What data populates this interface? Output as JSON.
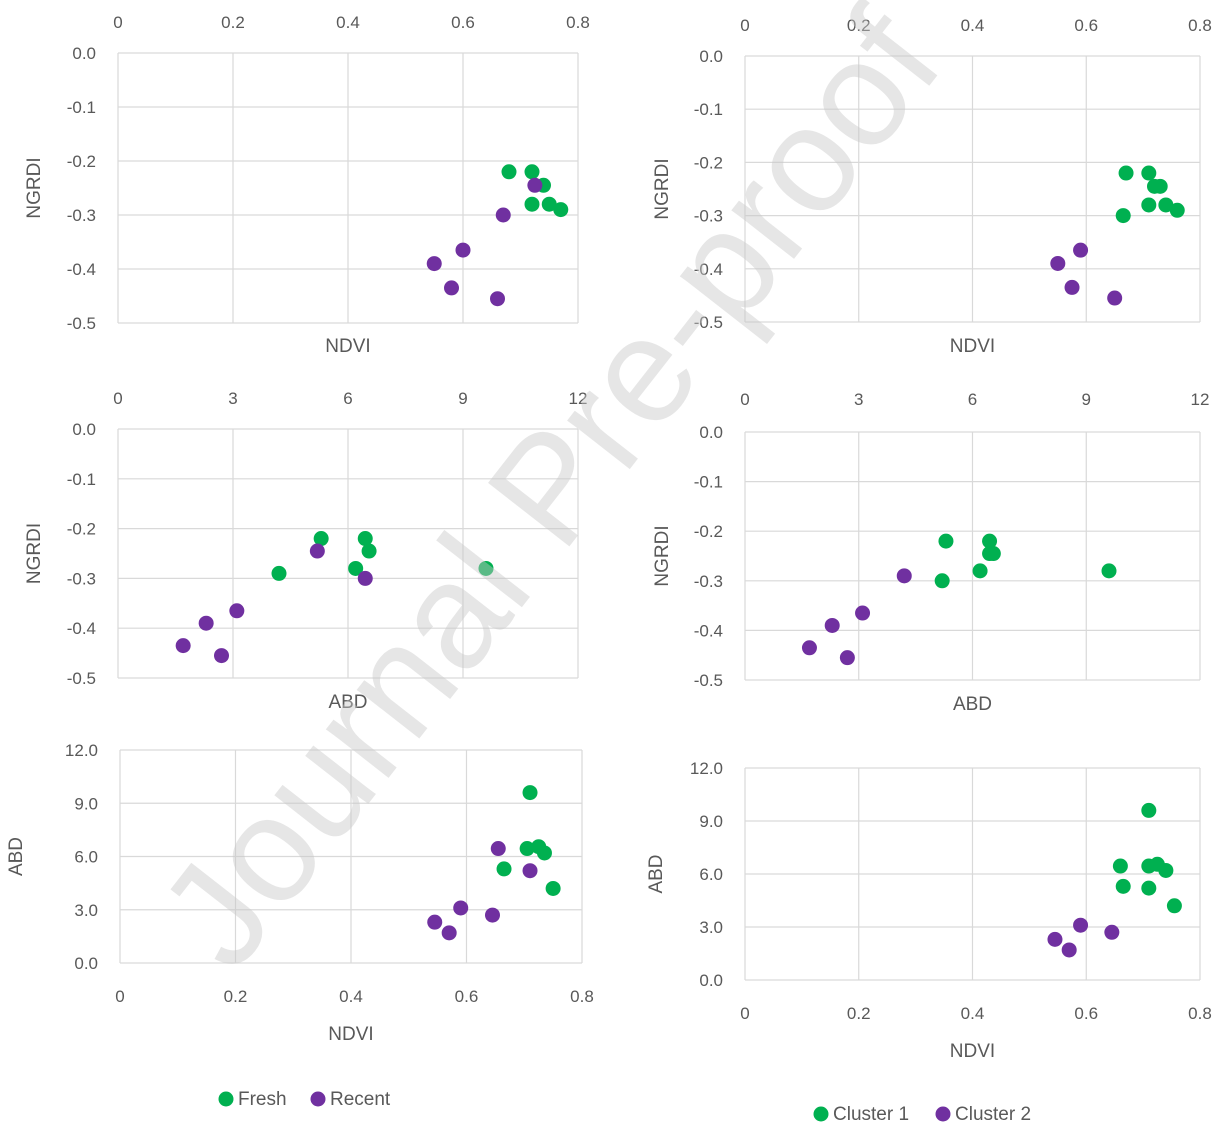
{
  "watermark": "Journal Pre-proof",
  "colors": {
    "green": "#00b050",
    "purple": "#7030a0",
    "grid": "#d9d9d9",
    "text": "#595959"
  },
  "chart_data": [
    {
      "type": "scatter",
      "xlabel": "NDVI",
      "ylabel": "NGRDI",
      "xlim": [
        0,
        0.8
      ],
      "ylim": [
        -0.5,
        0.0
      ],
      "xticks": [
        "0",
        "0.2",
        "0.4",
        "0.6",
        "0.8"
      ],
      "yticks": [
        "0.0",
        "-0.1",
        "-0.2",
        "-0.3",
        "-0.4",
        "-0.5"
      ],
      "x_axis_position": "top",
      "series": [
        {
          "name": "Fresh",
          "color": "#00b050",
          "points": [
            [
              0.68,
              -0.22
            ],
            [
              0.72,
              -0.22
            ],
            [
              0.72,
              -0.28
            ],
            [
              0.74,
              -0.245
            ],
            [
              0.75,
              -0.28
            ],
            [
              0.77,
              -0.29
            ]
          ]
        },
        {
          "name": "Recent",
          "color": "#7030a0",
          "points": [
            [
              0.55,
              -0.39
            ],
            [
              0.58,
              -0.435
            ],
            [
              0.6,
              -0.365
            ],
            [
              0.67,
              -0.3
            ],
            [
              0.66,
              -0.455
            ],
            [
              0.725,
              -0.245
            ]
          ]
        }
      ]
    },
    {
      "type": "scatter",
      "xlabel": "NDVI",
      "ylabel": "NGRDI",
      "xlim": [
        0,
        0.8
      ],
      "ylim": [
        -0.5,
        0.0
      ],
      "xticks": [
        "0",
        "0.2",
        "0.4",
        "0.6",
        "0.8"
      ],
      "yticks": [
        "0.0",
        "-0.1",
        "-0.2",
        "-0.3",
        "-0.4",
        "-0.5"
      ],
      "x_axis_position": "top",
      "series": [
        {
          "name": "Cluster 1",
          "color": "#00b050",
          "points": [
            [
              0.665,
              -0.3
            ],
            [
              0.67,
              -0.22
            ],
            [
              0.71,
              -0.22
            ],
            [
              0.71,
              -0.28
            ],
            [
              0.72,
              -0.245
            ],
            [
              0.73,
              -0.245
            ],
            [
              0.74,
              -0.28
            ],
            [
              0.76,
              -0.29
            ]
          ]
        },
        {
          "name": "Cluster 2",
          "color": "#7030a0",
          "points": [
            [
              0.55,
              -0.39
            ],
            [
              0.575,
              -0.435
            ],
            [
              0.59,
              -0.365
            ],
            [
              0.65,
              -0.455
            ]
          ]
        }
      ]
    },
    {
      "type": "scatter",
      "xlabel": "ABD",
      "ylabel": "NGRDI",
      "xlim": [
        0,
        12
      ],
      "ylim": [
        -0.5,
        0.0
      ],
      "xticks": [
        "0",
        "3",
        "6",
        "9",
        "12"
      ],
      "yticks": [
        "0.0",
        "-0.1",
        "-0.2",
        "-0.3",
        "-0.4",
        "-0.5"
      ],
      "x_axis_position": "top",
      "series": [
        {
          "name": "Fresh",
          "color": "#00b050",
          "points": [
            [
              4.2,
              -0.29
            ],
            [
              5.3,
              -0.22
            ],
            [
              6.2,
              -0.28
            ],
            [
              6.45,
              -0.22
            ],
            [
              6.55,
              -0.245
            ],
            [
              9.6,
              -0.28
            ]
          ]
        },
        {
          "name": "Recent",
          "color": "#7030a0",
          "points": [
            [
              1.7,
              -0.435
            ],
            [
              2.3,
              -0.39
            ],
            [
              2.7,
              -0.455
            ],
            [
              3.1,
              -0.365
            ],
            [
              5.2,
              -0.245
            ],
            [
              6.45,
              -0.3
            ]
          ]
        }
      ]
    },
    {
      "type": "scatter",
      "xlabel": "ABD",
      "ylabel": "NGRDI",
      "xlim": [
        0,
        12
      ],
      "ylim": [
        -0.5,
        0.0
      ],
      "xticks": [
        "0",
        "3",
        "6",
        "9",
        "12"
      ],
      "yticks": [
        "0.0",
        "-0.1",
        "-0.2",
        "-0.3",
        "-0.4",
        "-0.5"
      ],
      "x_axis_position": "top",
      "series": [
        {
          "name": "Cluster 1",
          "color": "#00b050",
          "points": [
            [
              5.2,
              -0.3
            ],
            [
              5.3,
              -0.22
            ],
            [
              6.2,
              -0.28
            ],
            [
              6.45,
              -0.22
            ],
            [
              6.45,
              -0.245
            ],
            [
              6.55,
              -0.245
            ],
            [
              9.6,
              -0.28
            ]
          ]
        },
        {
          "name": "Cluster 2",
          "color": "#7030a0",
          "points": [
            [
              1.7,
              -0.435
            ],
            [
              2.3,
              -0.39
            ],
            [
              2.7,
              -0.455
            ],
            [
              3.1,
              -0.365
            ],
            [
              4.2,
              -0.29
            ]
          ]
        }
      ]
    },
    {
      "type": "scatter",
      "xlabel": "NDVI",
      "ylabel": "ABD",
      "xlim": [
        0,
        0.8
      ],
      "ylim": [
        0,
        12
      ],
      "xticks": [
        "0",
        "0.2",
        "0.4",
        "0.6",
        "0.8"
      ],
      "yticks": [
        "12.0",
        "9.0",
        "6.0",
        "3.0",
        "0.0"
      ],
      "x_axis_position": "bottom",
      "series": [
        {
          "name": "Fresh",
          "color": "#00b050",
          "points": [
            [
              0.665,
              5.3
            ],
            [
              0.705,
              6.45
            ],
            [
              0.71,
              9.6
            ],
            [
              0.725,
              6.55
            ],
            [
              0.735,
              6.2
            ],
            [
              0.75,
              4.2
            ]
          ]
        },
        {
          "name": "Recent",
          "color": "#7030a0",
          "points": [
            [
              0.545,
              2.3
            ],
            [
              0.57,
              1.7
            ],
            [
              0.59,
              3.1
            ],
            [
              0.645,
              2.7
            ],
            [
              0.655,
              6.45
            ],
            [
              0.71,
              5.2
            ]
          ]
        }
      ]
    },
    {
      "type": "scatter",
      "xlabel": "NDVI",
      "ylabel": "ABD",
      "xlim": [
        0,
        0.8
      ],
      "ylim": [
        0,
        12
      ],
      "xticks": [
        "0",
        "0.2",
        "0.4",
        "0.6",
        "0.8"
      ],
      "yticks": [
        "12.0",
        "9.0",
        "6.0",
        "3.0",
        "0.0"
      ],
      "x_axis_position": "bottom",
      "series": [
        {
          "name": "Cluster 1",
          "color": "#00b050",
          "points": [
            [
              0.66,
              6.45
            ],
            [
              0.665,
              5.3
            ],
            [
              0.71,
              6.45
            ],
            [
              0.71,
              9.6
            ],
            [
              0.71,
              5.2
            ],
            [
              0.725,
              6.55
            ],
            [
              0.74,
              6.2
            ],
            [
              0.755,
              4.2
            ]
          ]
        },
        {
          "name": "Cluster 2",
          "color": "#7030a0",
          "points": [
            [
              0.545,
              2.3
            ],
            [
              0.57,
              1.7
            ],
            [
              0.59,
              3.1
            ],
            [
              0.645,
              2.7
            ]
          ]
        }
      ]
    }
  ],
  "legends": [
    {
      "items": [
        {
          "label": "Fresh",
          "color": "#00b050"
        },
        {
          "label": "Recent",
          "color": "#7030a0"
        }
      ]
    },
    {
      "items": [
        {
          "label": "Cluster 1",
          "color": "#00b050"
        },
        {
          "label": "Cluster 2",
          "color": "#7030a0"
        }
      ]
    }
  ]
}
